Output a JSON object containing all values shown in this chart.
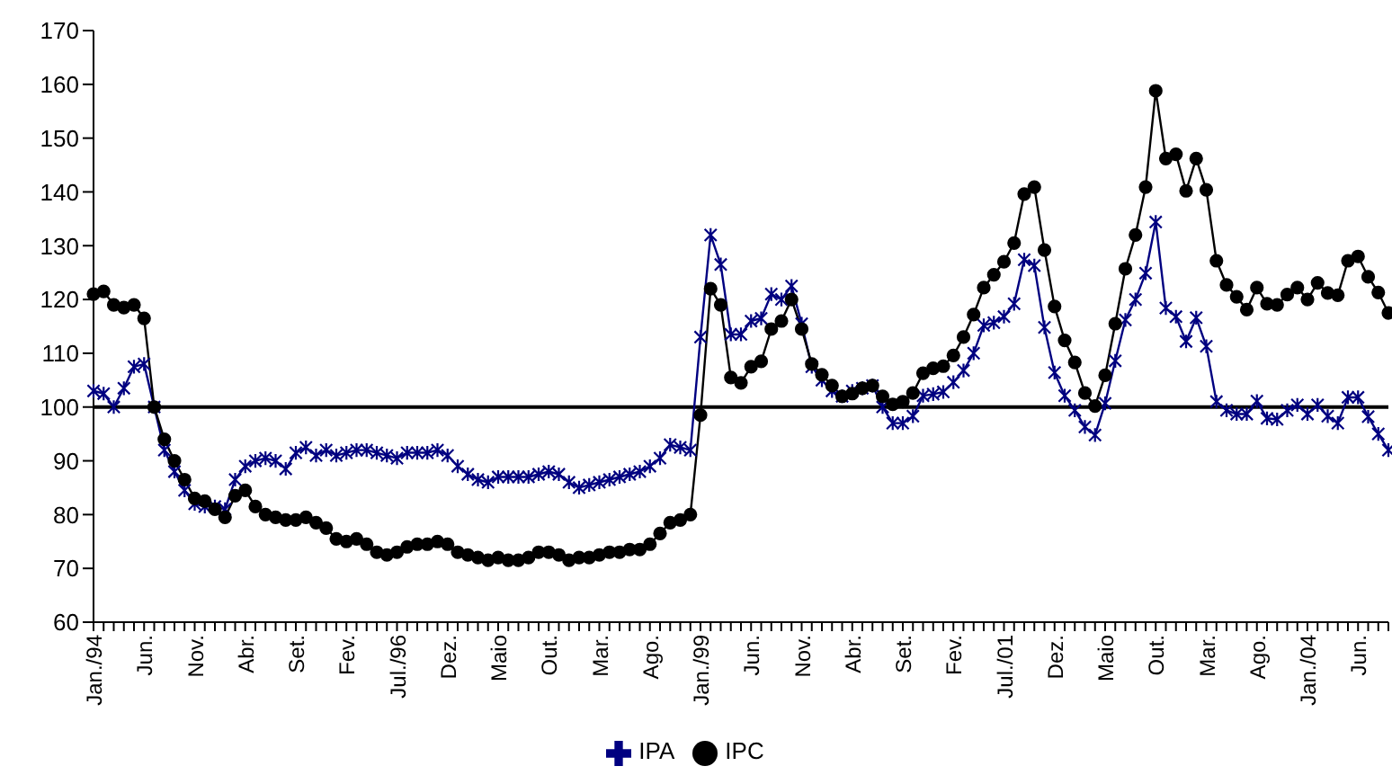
{
  "chart_data": {
    "type": "line",
    "categories": [
      "Jan./94",
      null,
      null,
      null,
      null,
      "Jun.",
      null,
      null,
      null,
      null,
      "Nov.",
      null,
      null,
      null,
      null,
      "Abr.",
      null,
      null,
      null,
      null,
      "Set.",
      null,
      null,
      null,
      null,
      "Fev.",
      null,
      null,
      null,
      null,
      "Jul./96",
      null,
      null,
      null,
      null,
      "Dez.",
      null,
      null,
      null,
      null,
      "Maio",
      null,
      null,
      null,
      null,
      "Out.",
      null,
      null,
      null,
      null,
      "Mar.",
      null,
      null,
      null,
      null,
      "Ago.",
      null,
      null,
      null,
      null,
      "Jan./99",
      null,
      null,
      null,
      null,
      "Jun.",
      null,
      null,
      null,
      null,
      "Nov.",
      null,
      null,
      null,
      null,
      "Abr.",
      null,
      null,
      null,
      null,
      "Set.",
      null,
      null,
      null,
      null,
      "Fev.",
      null,
      null,
      null,
      null,
      "Jul./01",
      null,
      null,
      null,
      null,
      "Dez.",
      null,
      null,
      null,
      null,
      "Maio",
      null,
      null,
      null,
      null,
      "Out.",
      null,
      null,
      null,
      null,
      "Mar.",
      null,
      null,
      null,
      null,
      "Ago.",
      null,
      null,
      null,
      null,
      "Jan./04",
      null,
      null,
      null,
      null,
      "Jun.",
      null,
      null,
      null
    ],
    "series": [
      {
        "name": "IPA",
        "color": "#000080",
        "marker": "cross",
        "values": [
          103,
          102.5,
          100,
          103.5,
          107.5,
          108,
          100,
          92,
          88,
          84.5,
          82,
          81.5,
          81.5,
          81,
          86.5,
          89,
          90,
          90.5,
          90,
          88.5,
          91.5,
          92.5,
          91,
          92,
          91,
          91.5,
          92,
          92,
          91.5,
          91,
          90.5,
          91.5,
          91.5,
          91.5,
          92,
          91,
          89,
          87.5,
          86.5,
          86,
          87,
          87,
          87,
          87,
          87.5,
          88,
          87.5,
          86,
          85,
          85.5,
          86,
          86.5,
          87,
          87.5,
          88,
          89,
          90.5,
          93,
          92.5,
          92,
          113,
          132,
          126.5,
          113.5,
          113.5,
          116,
          116.5,
          121,
          120,
          122.5,
          115.5,
          107.5,
          105,
          103,
          102,
          103,
          103.5,
          104,
          100,
          97,
          97,
          98.3,
          102.1,
          102.4,
          102.8,
          104.6,
          106.8,
          110,
          115.2,
          115.7,
          116.8,
          119.2,
          127.4,
          126.3,
          114.8,
          106.4,
          102.1,
          99.4,
          96.3,
          94.8,
          100.7,
          108.6,
          116.2,
          120,
          124.9,
          134.4,
          118.4,
          116.8,
          112.2,
          116.6,
          111.3,
          101,
          99.4,
          98.7,
          98.7,
          101.1,
          97.9,
          97.7,
          99.4,
          100.4,
          98.7,
          100.4,
          98.3,
          97,
          101.8,
          101.8,
          98.2,
          95,
          92
        ]
      },
      {
        "name": "IPC",
        "color": "#000000",
        "marker": "circle",
        "values": [
          121,
          121.5,
          119,
          118.5,
          119,
          116.5,
          100,
          94,
          90,
          86.5,
          83,
          82.5,
          81,
          79.5,
          83.5,
          84.5,
          81.5,
          80,
          79.5,
          79,
          79,
          79.5,
          78.5,
          77.5,
          75.5,
          75,
          75.5,
          74.5,
          73,
          72.5,
          73,
          74,
          74.5,
          74.5,
          75,
          74.5,
          73,
          72.5,
          72,
          71.5,
          72,
          71.5,
          71.5,
          72,
          73,
          73,
          72.5,
          71.5,
          72,
          72,
          72.5,
          73,
          73,
          73.5,
          73.5,
          74.5,
          76.5,
          78.5,
          79,
          80,
          98.5,
          122,
          119,
          105.5,
          104.5,
          107.5,
          108.5,
          114.5,
          116,
          120,
          114.5,
          108,
          106,
          104,
          102,
          102.5,
          103.5,
          104,
          102,
          100.5,
          101,
          102.6,
          106.3,
          107.2,
          107.6,
          109.6,
          113,
          117.2,
          122.2,
          124.6,
          127,
          130.5,
          139.6,
          140.9,
          129.2,
          118.7,
          112.4,
          108.3,
          102.6,
          100.2,
          105.9,
          115.5,
          125.7,
          132,
          140.9,
          158.8,
          146.2,
          147,
          140.2,
          146.2,
          140.4,
          127.2,
          122.7,
          120.5,
          118.1,
          122.2,
          119.2,
          119,
          120.9,
          122.2,
          120,
          123.1,
          121.2,
          120.8,
          127.2,
          128,
          124.2,
          121.3,
          117.5
        ]
      }
    ],
    "ylim": [
      60,
      170
    ],
    "yticks": [
      60,
      70,
      80,
      90,
      100,
      110,
      120,
      130,
      140,
      150,
      160,
      170
    ],
    "ref_lines": [
      {
        "axis": "y",
        "value": 100,
        "color": "#000000"
      }
    ],
    "legend": "bottom",
    "line_style": "solid"
  }
}
